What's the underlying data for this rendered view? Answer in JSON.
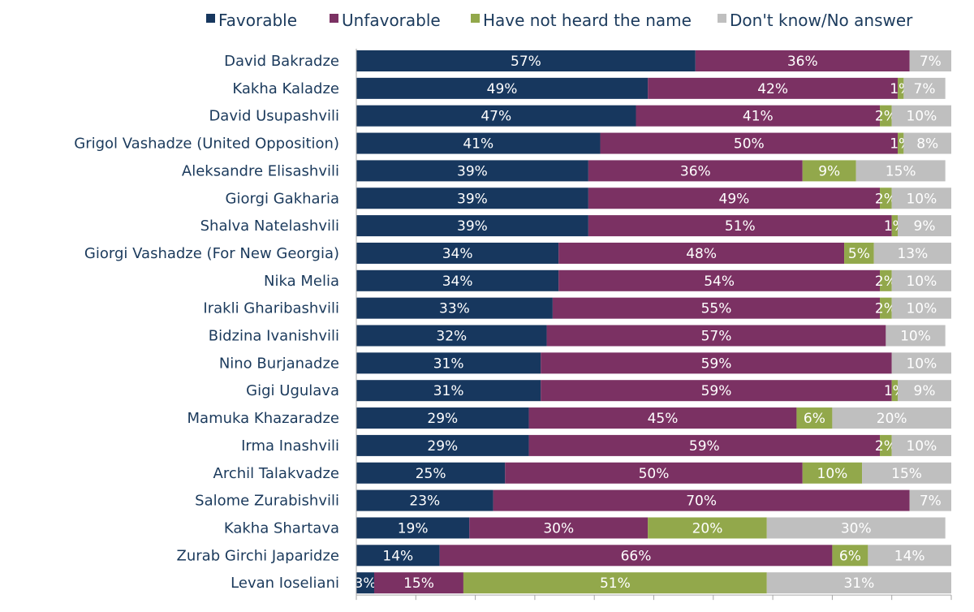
{
  "chart_data": {
    "type": "bar",
    "orientation": "horizontal",
    "stacked": true,
    "legend_position": "top",
    "grid": false,
    "xlim": [
      0,
      100
    ],
    "categories": [
      "David Bakradze",
      "Kakha Kaladze",
      "David Usupashvili",
      "Grigol Vashadze (United Opposition)",
      "Aleksandre Elisashvili",
      "Giorgi Gakharia",
      "Shalva Natelashvili",
      "Giorgi Vashadze (For New Georgia)",
      "Nika Melia",
      "Irakli Gharibashvili",
      "Bidzina Ivanishvili",
      "Nino Burjanadze",
      "Gigi Ugulava",
      "Mamuka Khazaradze",
      "Irma Inashvili",
      "Archil Talakvadze",
      "Salome Zurabishvili",
      "Kakha Shartava",
      "Zurab Girchi Japaridze",
      "Levan Ioseliani"
    ],
    "series": [
      {
        "name": "Favorable",
        "color": "#17375e",
        "values": [
          57,
          49,
          47,
          41,
          39,
          39,
          39,
          34,
          34,
          33,
          32,
          31,
          31,
          29,
          29,
          25,
          23,
          19,
          14,
          3
        ]
      },
      {
        "name": "Unfavorable",
        "color": "#7b3163",
        "values": [
          36,
          42,
          41,
          50,
          36,
          49,
          51,
          48,
          54,
          55,
          57,
          59,
          59,
          45,
          59,
          50,
          70,
          30,
          66,
          15
        ]
      },
      {
        "name": "Have not heard the name",
        "color": "#92a84b",
        "values": [
          0,
          1,
          2,
          1,
          9,
          2,
          1,
          5,
          2,
          2,
          0,
          0,
          1,
          6,
          2,
          10,
          0,
          20,
          6,
          51
        ]
      },
      {
        "name": "Don't know/No answer",
        "color": "#bfbfbf",
        "values": [
          7,
          7,
          10,
          8,
          15,
          10,
          9,
          13,
          10,
          10,
          10,
          10,
          9,
          20,
          10,
          15,
          7,
          30,
          14,
          31
        ]
      }
    ]
  }
}
